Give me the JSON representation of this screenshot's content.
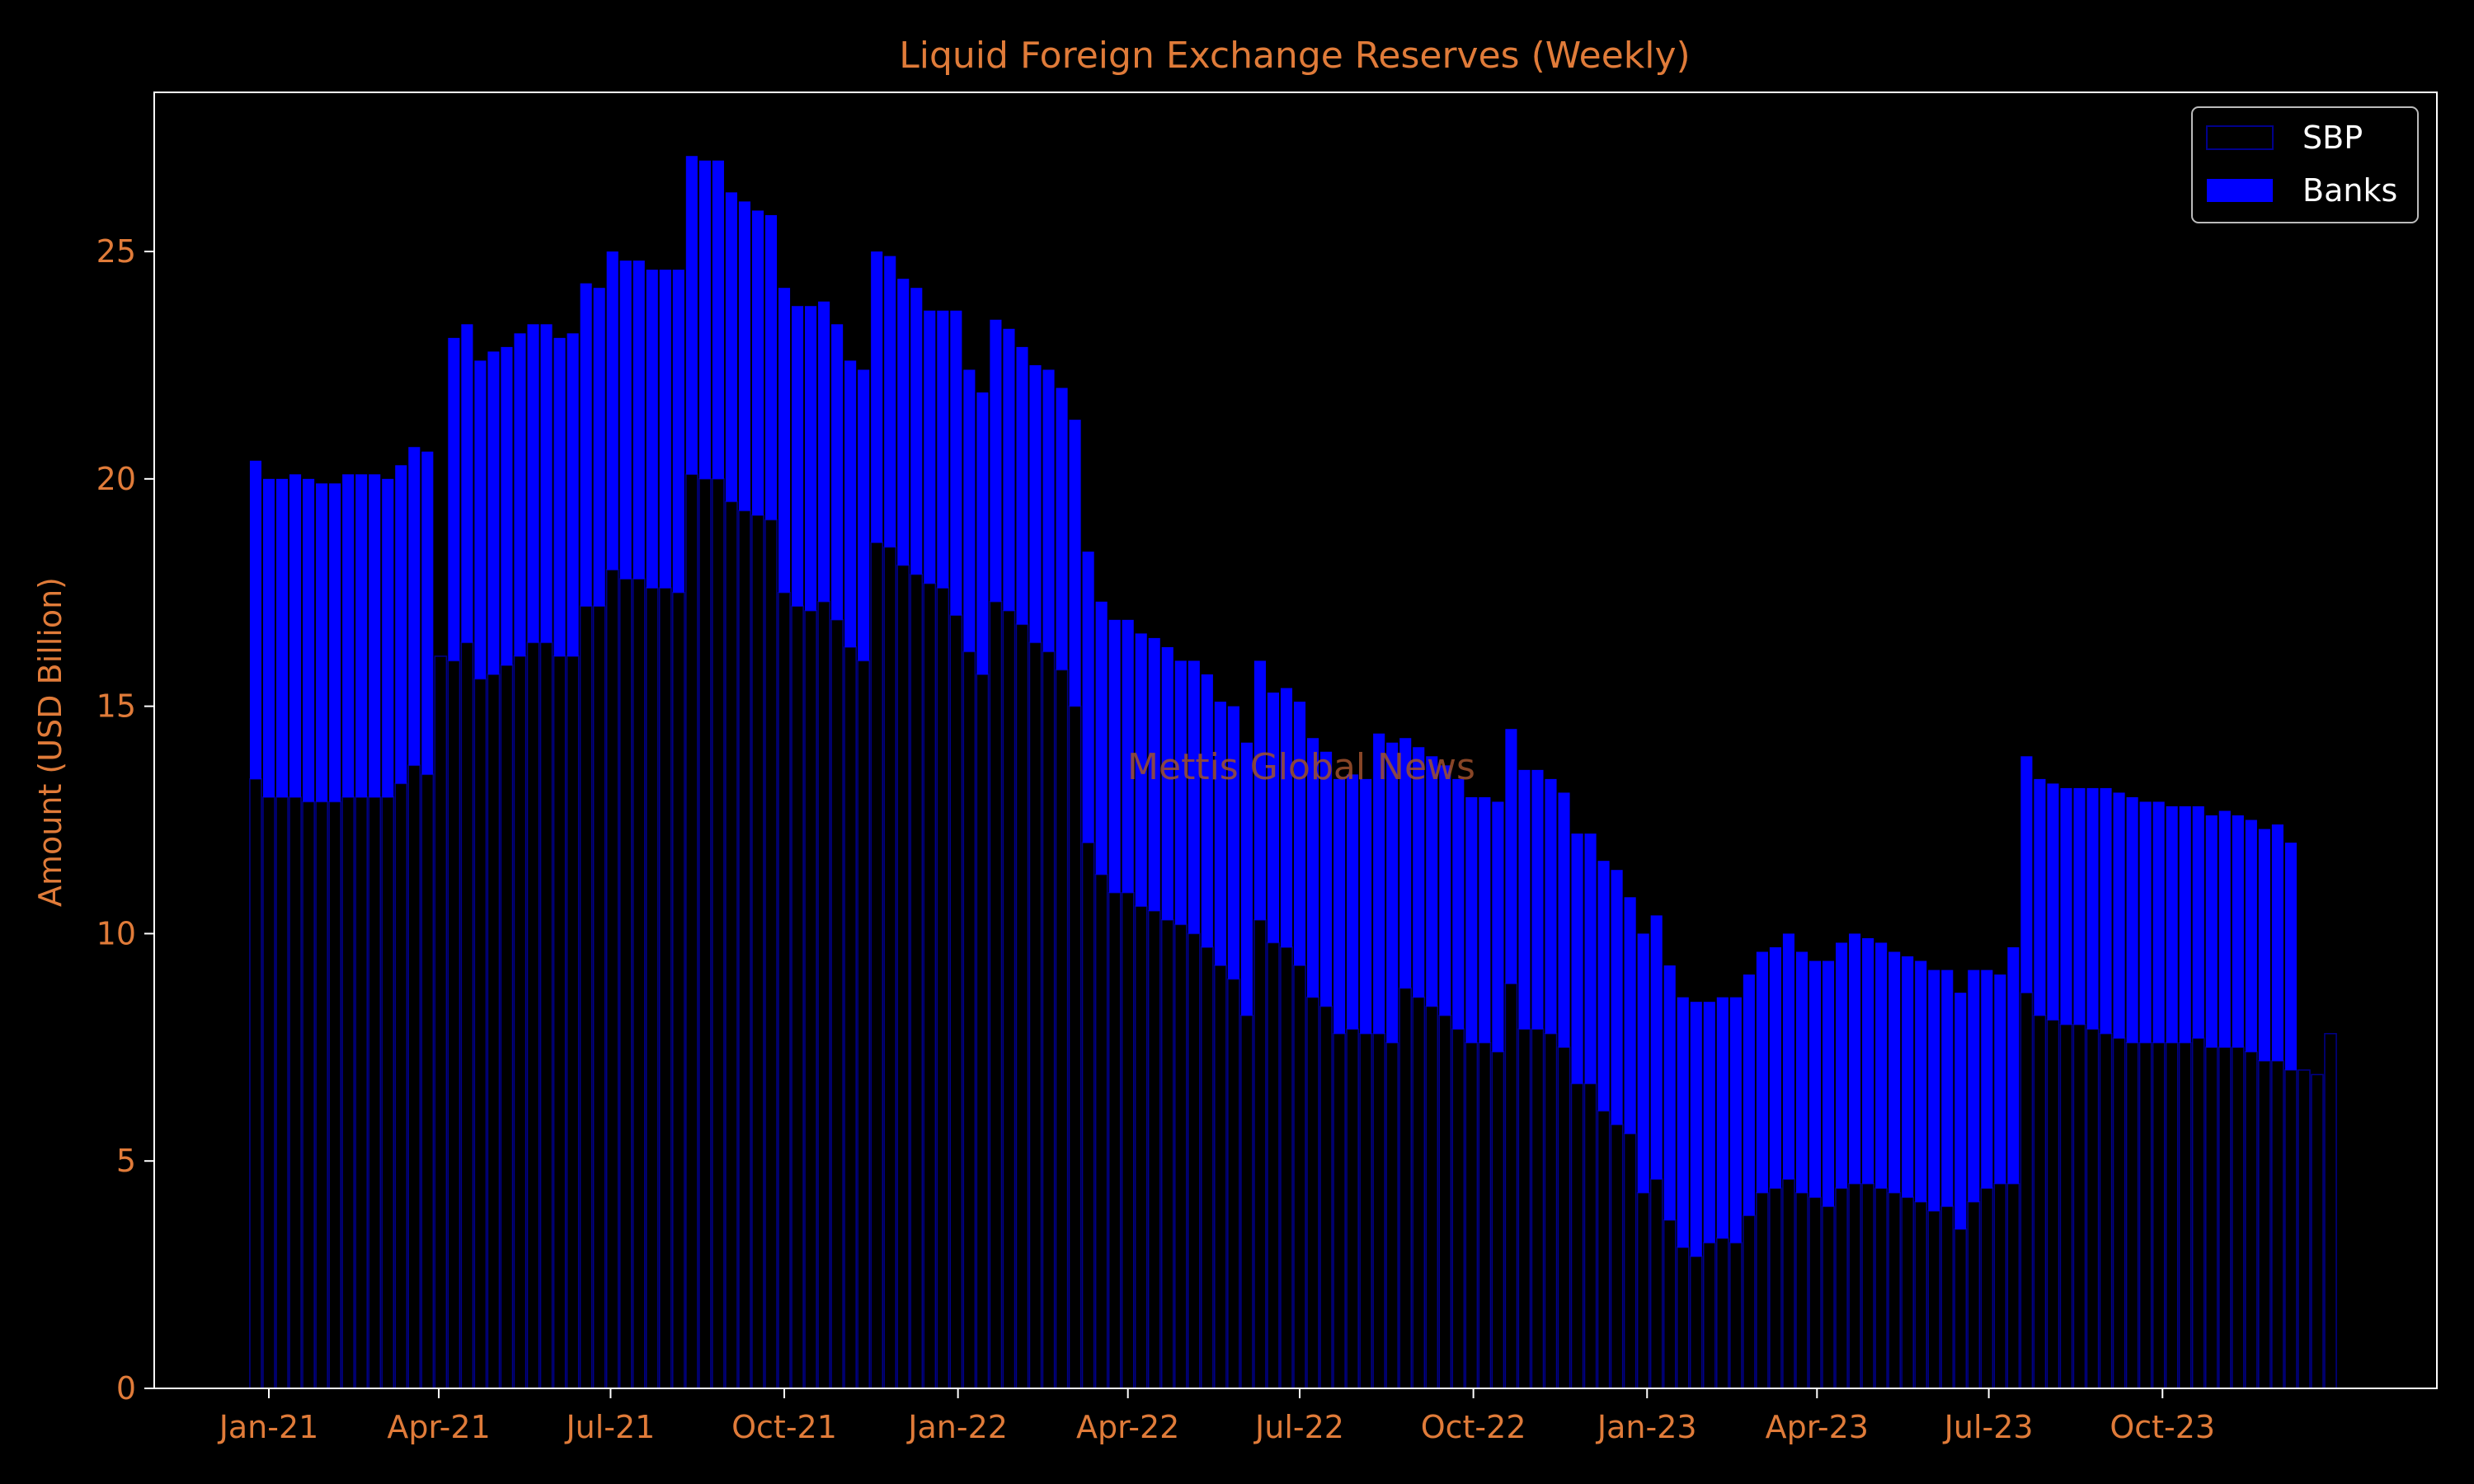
{
  "chart_data": {
    "type": "bar",
    "stacked": true,
    "title": "Liquid Foreign Exchange Reserves (Weekly)",
    "xlabel": "",
    "ylabel": "Amount (USD Billion)",
    "ylim": [
      0,
      28.5
    ],
    "yticks": [
      0,
      5,
      10,
      15,
      20,
      25
    ],
    "x_start": "2020-12-25",
    "x_end": "2023-12-29",
    "xticks": [
      {
        "date": "2021-01-01",
        "label": "Jan-21"
      },
      {
        "date": "2021-04-01",
        "label": "Apr-21"
      },
      {
        "date": "2021-07-01",
        "label": "Jul-21"
      },
      {
        "date": "2021-10-01",
        "label": "Oct-21"
      },
      {
        "date": "2022-01-01",
        "label": "Jan-22"
      },
      {
        "date": "2022-04-01",
        "label": "Apr-22"
      },
      {
        "date": "2022-07-01",
        "label": "Jul-22"
      },
      {
        "date": "2022-10-01",
        "label": "Oct-22"
      },
      {
        "date": "2023-01-01",
        "label": "Jan-23"
      },
      {
        "date": "2023-04-01",
        "label": "Apr-23"
      },
      {
        "date": "2023-07-01",
        "label": "Jul-23"
      },
      {
        "date": "2023-10-01",
        "label": "Oct-23"
      }
    ],
    "legend_position": "top-right",
    "grid": false,
    "watermark": "Mettis Global News",
    "series": [
      {
        "name": "SBP",
        "color": "#00008b",
        "start": "2020-12-25",
        "step_days": 7,
        "values": [
          13.4,
          13.0,
          13.0,
          13.0,
          12.9,
          12.9,
          12.9,
          13.0,
          13.0,
          13.0,
          13.0,
          13.3,
          13.7,
          13.5,
          16.1,
          16.0,
          16.4,
          15.6,
          15.7,
          15.9,
          16.1,
          16.4,
          16.4,
          16.1,
          16.1,
          17.2,
          17.2,
          18.0,
          17.8,
          17.8,
          17.6,
          17.6,
          17.5,
          20.1,
          20.0,
          20.0,
          19.5,
          19.3,
          19.2,
          19.1,
          17.5,
          17.2,
          17.1,
          17.3,
          16.9,
          16.3,
          16.0,
          18.6,
          18.5,
          18.1,
          17.9,
          17.7,
          17.6,
          17.0,
          16.2,
          15.7,
          17.3,
          17.1,
          16.8,
          16.4,
          16.2,
          15.8,
          15.0,
          12.0,
          11.3,
          10.9,
          10.9,
          10.6,
          10.5,
          10.3,
          10.2,
          10.0,
          9.7,
          9.3,
          9.0,
          8.2,
          10.3,
          9.8,
          9.7,
          9.3,
          8.6,
          8.4,
          7.8,
          7.9,
          7.8,
          7.8,
          7.6,
          8.8,
          8.6,
          8.4,
          8.2,
          7.9,
          7.6,
          7.6,
          7.4,
          8.9,
          7.9,
          7.9,
          7.8,
          7.5,
          6.7,
          6.7,
          6.1,
          5.8,
          5.6,
          4.3,
          4.6,
          3.7,
          3.1,
          2.9,
          3.2,
          3.3,
          3.2,
          3.8,
          4.3,
          4.4,
          4.6,
          4.3,
          4.2,
          4.0,
          4.4,
          4.5,
          4.5,
          4.4,
          4.3,
          4.2,
          4.1,
          3.9,
          4.0,
          3.5,
          4.1,
          4.4,
          4.5,
          4.5,
          8.7,
          8.2,
          8.1,
          8.0,
          8.0,
          7.9,
          7.8,
          7.7,
          7.6,
          7.6,
          7.6,
          7.6,
          7.6,
          7.7,
          7.5,
          7.5,
          7.5,
          7.4,
          7.2,
          7.2,
          7.0,
          7.0,
          6.9,
          7.8
        ]
      },
      {
        "name": "Banks",
        "color": "#0000ff",
        "start": "2020-12-25",
        "step_days": 7,
        "values": [
          7.0,
          7.0,
          7.0,
          7.1,
          7.1,
          7.0,
          7.0,
          7.1,
          7.1,
          7.1,
          7.0,
          7.0,
          7.0,
          7.1,
          0.0,
          7.1,
          7.0,
          7.0,
          7.1,
          7.0,
          7.1,
          7.0,
          7.0,
          7.0,
          7.1,
          7.1,
          7.0,
          7.0,
          7.0,
          7.0,
          7.0,
          7.0,
          7.1,
          7.0,
          7.0,
          7.0,
          6.8,
          6.8,
          6.7,
          6.7,
          6.7,
          6.6,
          6.7,
          6.6,
          6.5,
          6.3,
          6.4,
          6.4,
          6.4,
          6.3,
          6.3,
          6.0,
          6.1,
          6.7,
          6.2,
          6.2,
          6.2,
          6.2,
          6.1,
          6.1,
          6.2,
          6.2,
          6.3,
          6.4,
          6.0,
          6.0,
          6.0,
          6.0,
          6.0,
          6.0,
          5.8,
          6.0,
          6.0,
          5.8,
          6.0,
          6.0,
          5.7,
          5.5,
          5.7,
          5.8,
          5.7,
          5.6,
          5.6,
          5.6,
          5.6,
          6.6,
          6.6,
          5.5,
          5.5,
          5.5,
          5.5,
          5.5,
          5.4,
          5.4,
          5.5,
          5.6,
          5.7,
          5.7,
          5.6,
          5.6,
          5.5,
          5.5,
          5.5,
          5.6,
          5.2,
          5.7,
          5.8,
          5.6,
          5.5,
          5.6,
          5.3,
          5.3,
          5.4,
          5.3,
          5.3,
          5.3,
          5.4,
          5.3,
          5.2,
          5.4,
          5.4,
          5.5,
          5.4,
          5.4,
          5.3,
          5.3,
          5.3,
          5.3,
          5.2,
          5.2,
          5.1,
          4.8,
          4.6,
          5.2,
          5.2,
          5.2,
          5.2,
          5.2,
          5.2,
          5.3,
          5.4,
          5.4,
          5.4,
          5.3,
          5.3,
          5.2,
          5.2,
          5.1,
          5.1,
          5.2,
          5.1,
          5.1,
          5.1,
          5.2,
          5.0
        ]
      }
    ]
  }
}
